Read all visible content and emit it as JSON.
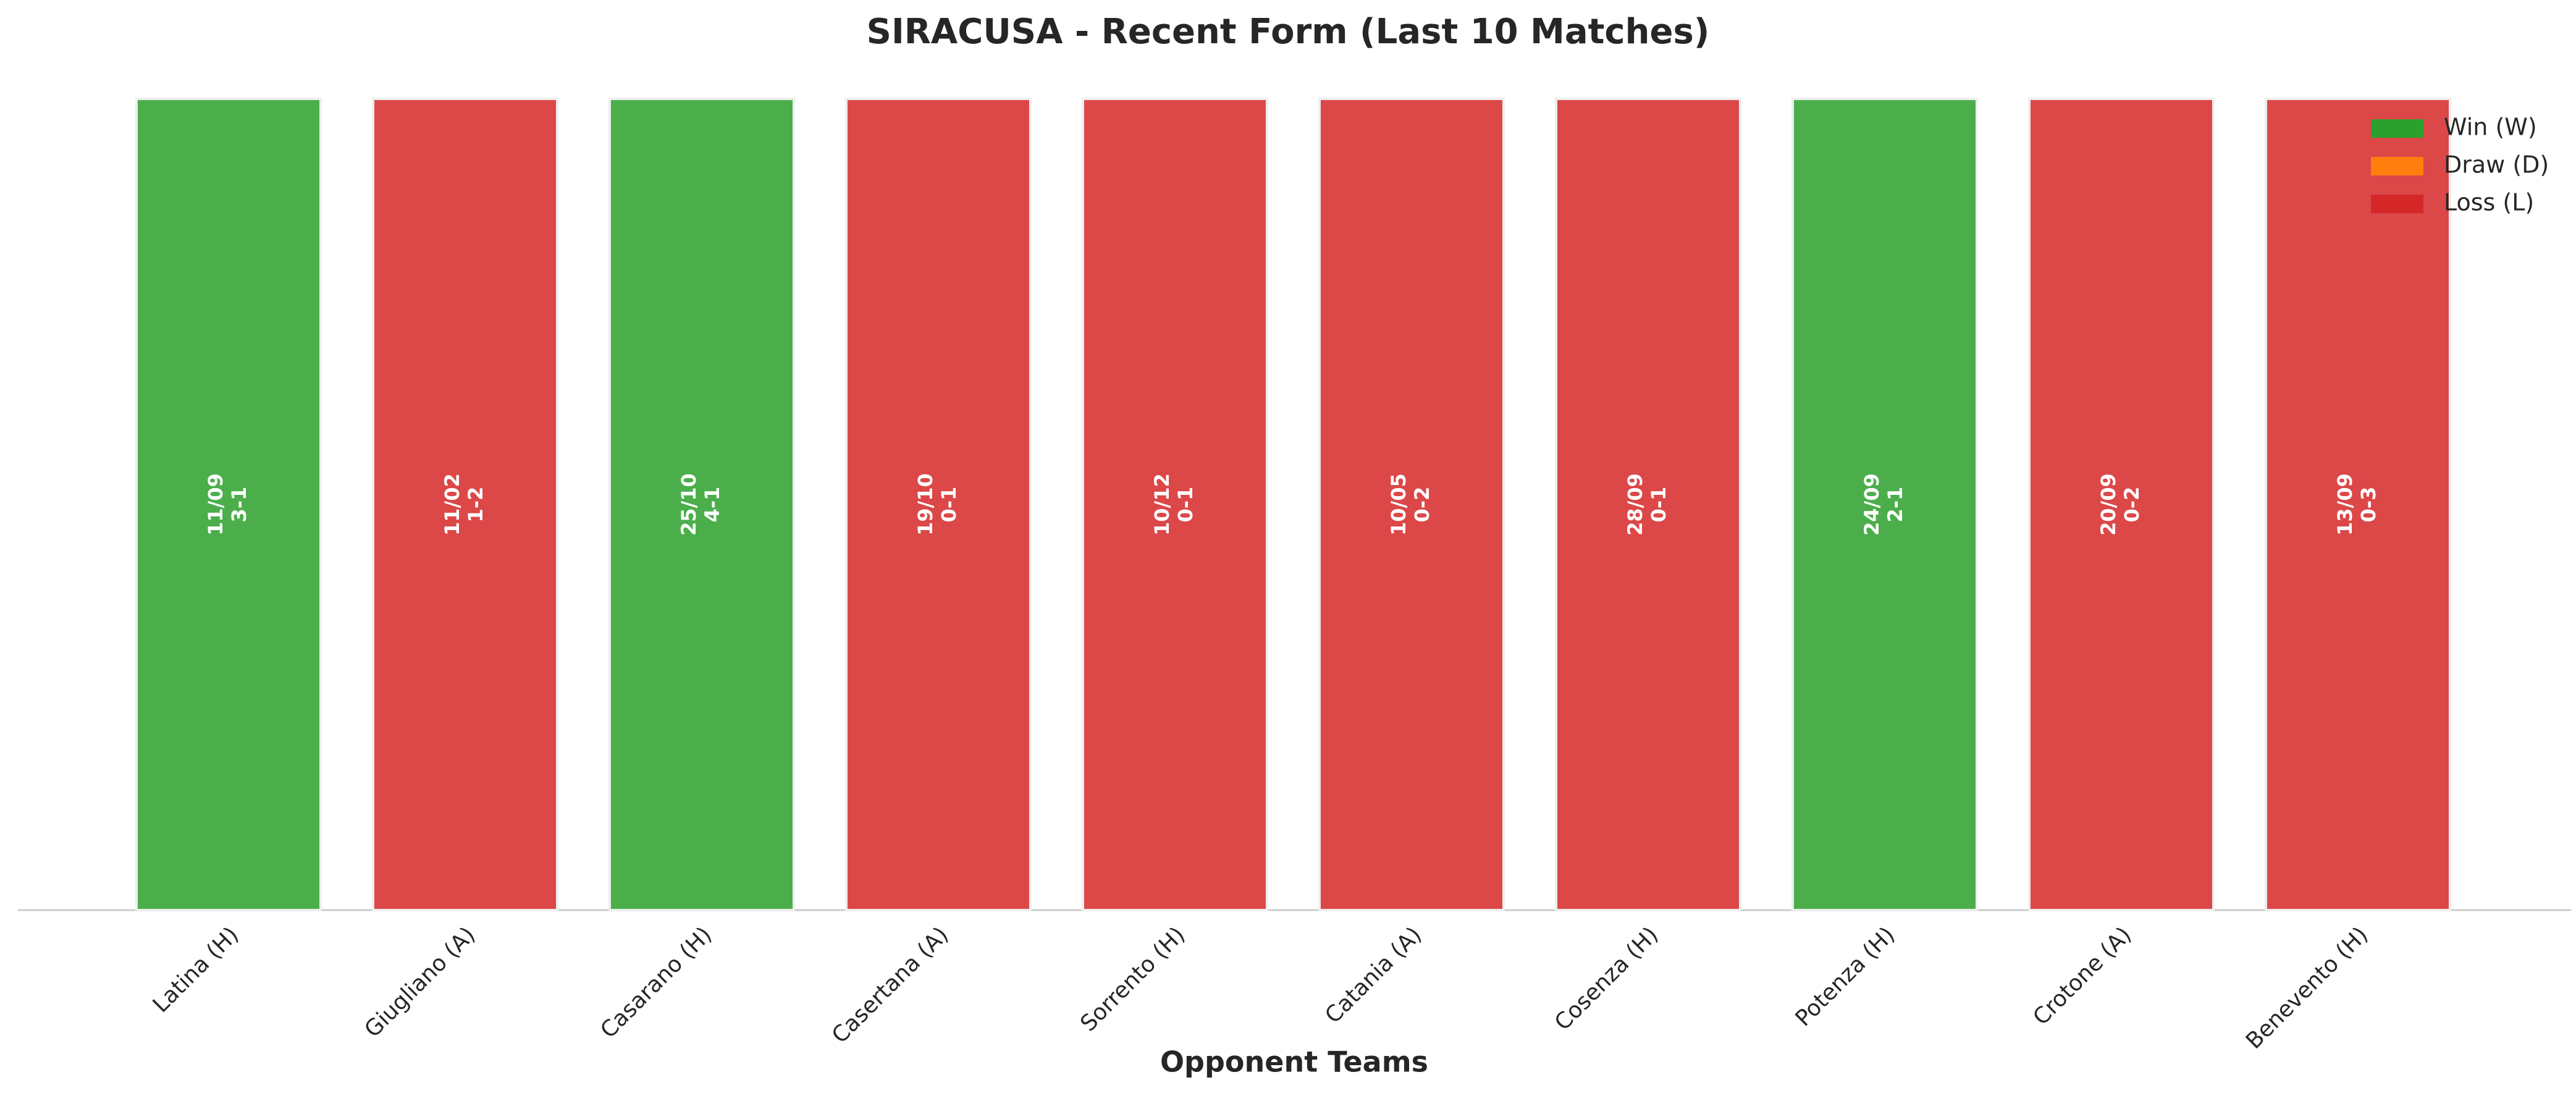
{
  "chart_data": {
    "type": "bar",
    "title": "SIRACUSA - Recent Form (Last 10 Matches)",
    "x_label": "Opponent Teams",
    "categories": [
      "Latina (H)",
      "Giugliano (A)",
      "Casarano (H)",
      "Casertana (A)",
      "Sorrento (H)",
      "Catania (A)",
      "Cosenza (H)",
      "Potenza (H)",
      "Crotone (A)",
      "Benevento (H)"
    ],
    "values": [
      1,
      1,
      1,
      1,
      1,
      1,
      1,
      1,
      1,
      1
    ],
    "dates": [
      "11/09",
      "11/02",
      "25/10",
      "19/10",
      "10/12",
      "10/05",
      "28/09",
      "24/09",
      "20/09",
      "13/09"
    ],
    "scores": [
      "3-1",
      "1-2",
      "4-1",
      "0-1",
      "0-1",
      "0-2",
      "0-1",
      "2-1",
      "0-2",
      "0-3"
    ],
    "colors": [
      "#2ca02c",
      "#d62728",
      "#2ca02c",
      "#d62728",
      "#d62728",
      "#d62728",
      "#d62728",
      "#2ca02c",
      "#d62728",
      "#d62728"
    ],
    "ylim": [
      0,
      1
    ],
    "legend": [
      {
        "name": "Win (W)",
        "color": "#2ca02c"
      },
      {
        "name": "Draw (D)",
        "color": "#ff7f0e"
      },
      {
        "name": "Loss (L)",
        "color": "#d62728"
      }
    ],
    "legend_position": "upper right"
  }
}
